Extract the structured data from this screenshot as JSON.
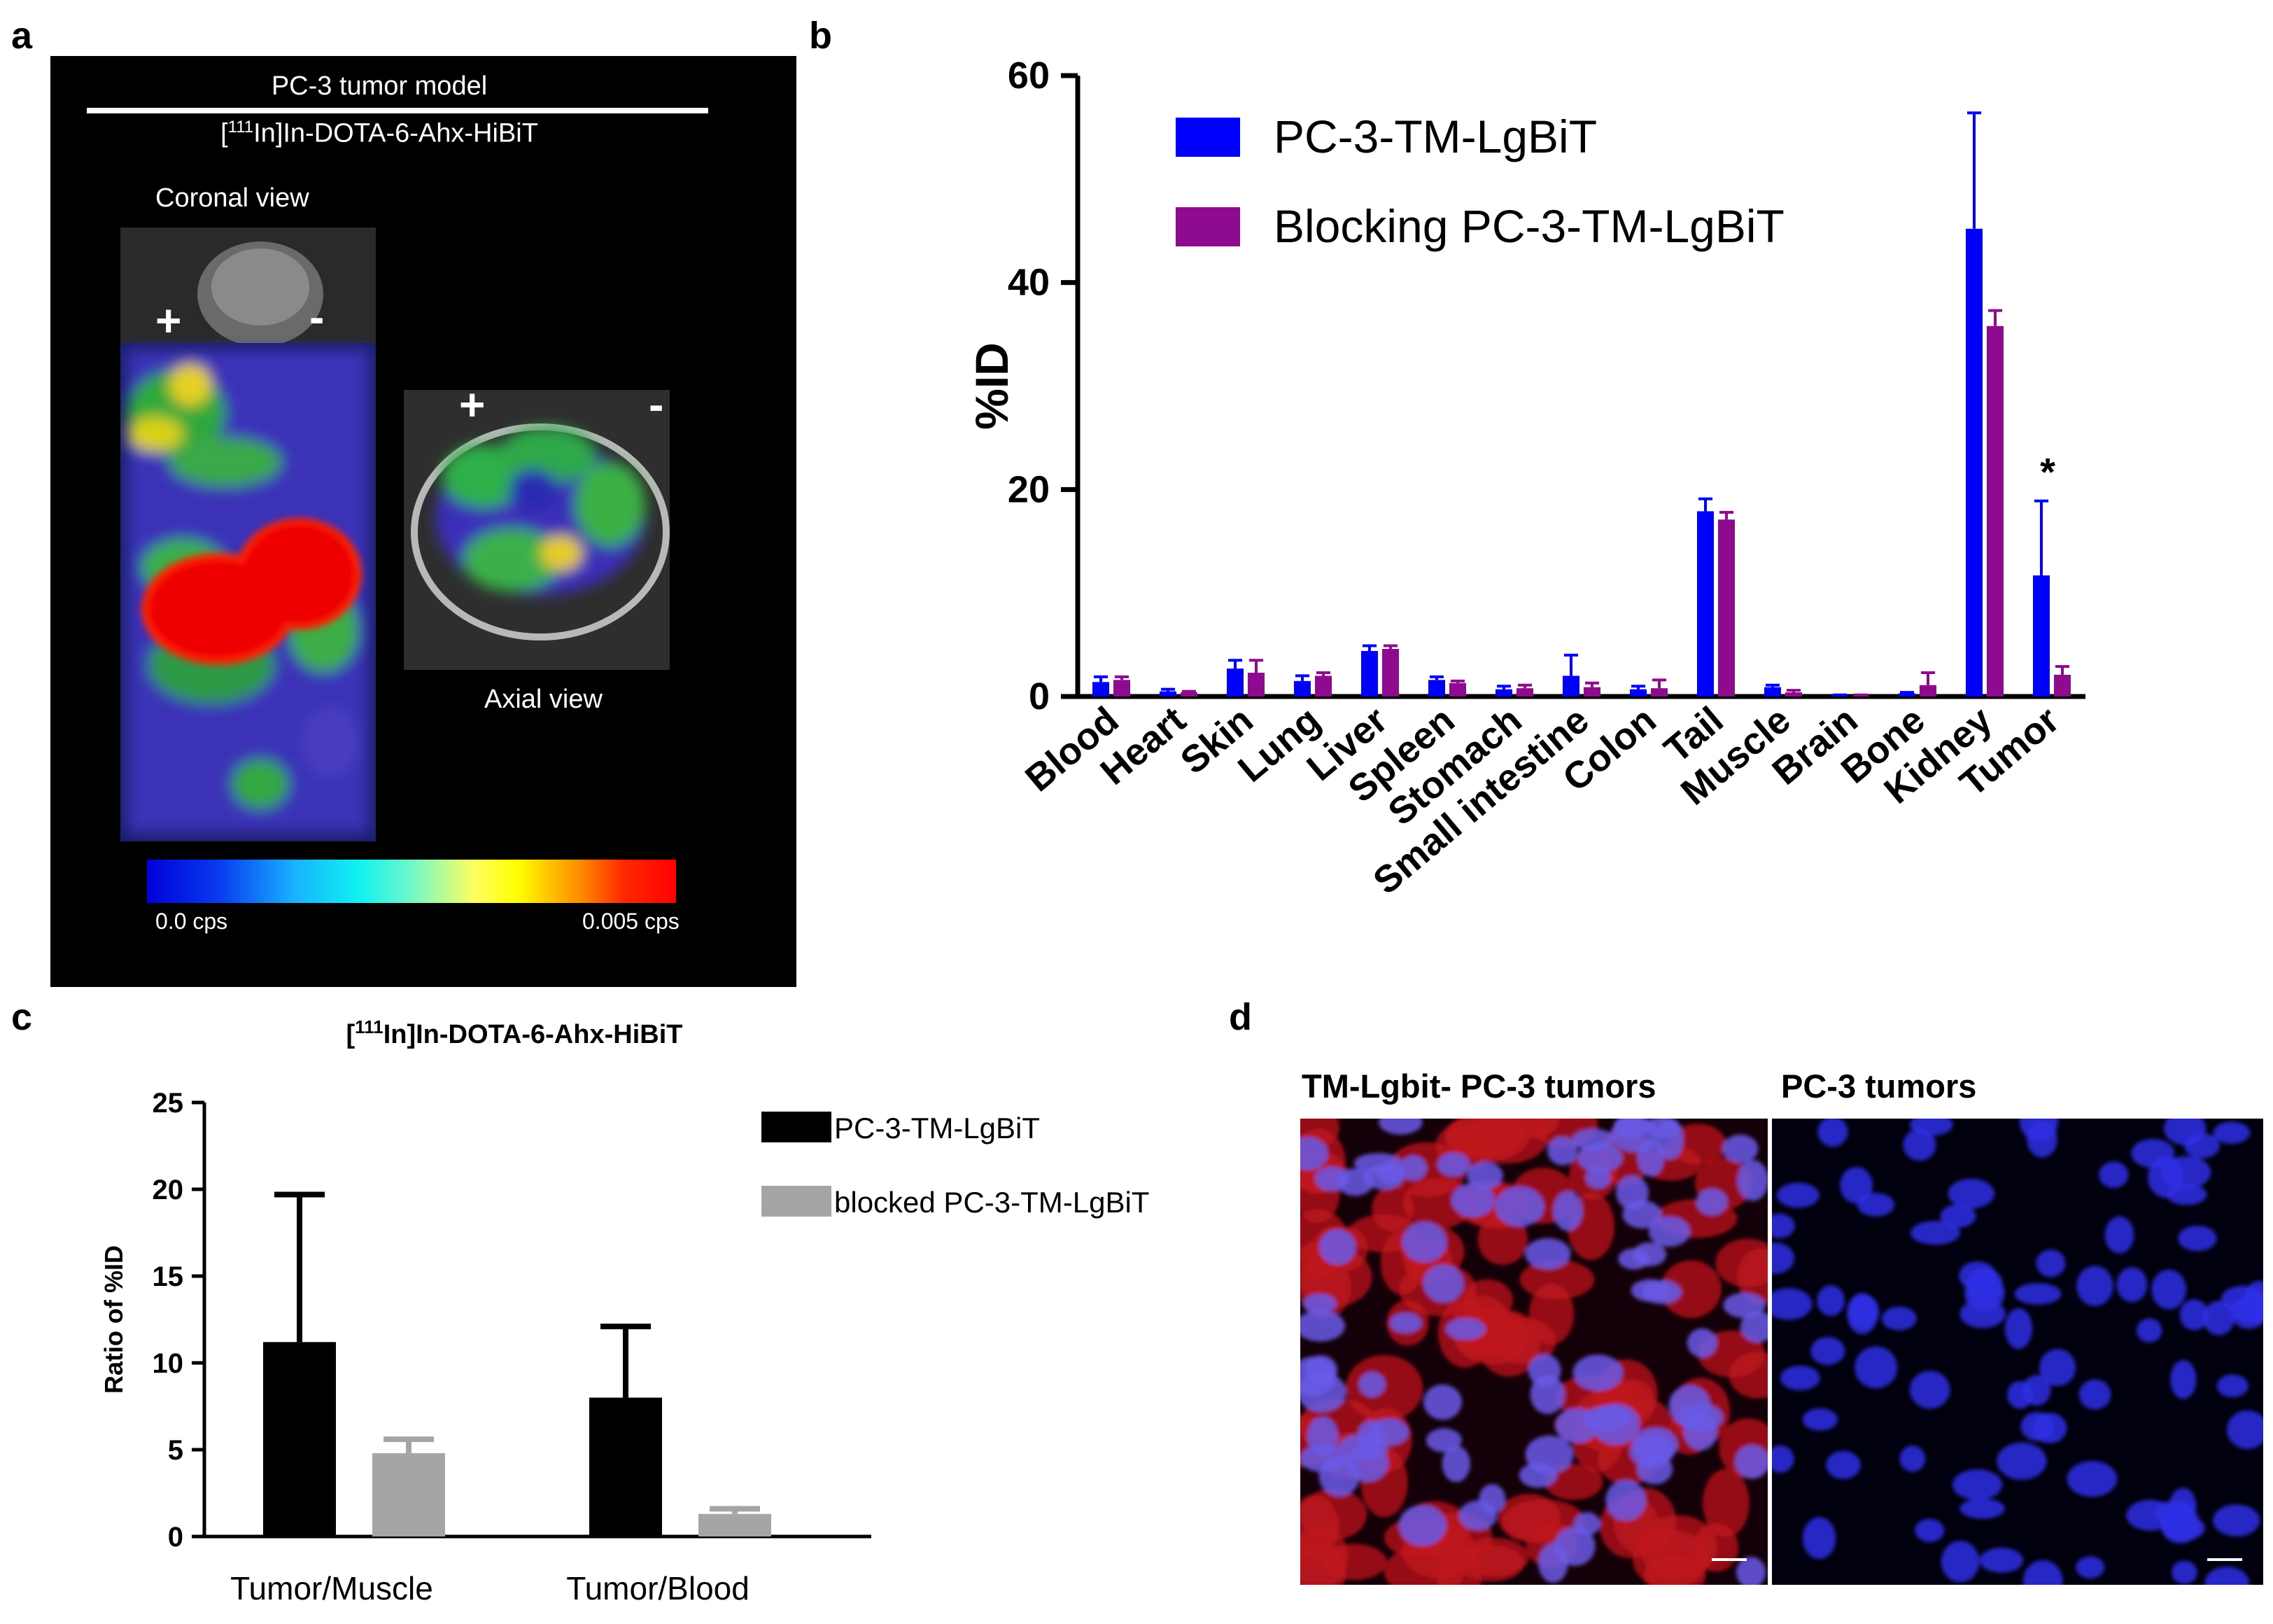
{
  "panel_labels": {
    "a": "a",
    "b": "b",
    "c": "c",
    "d": "d"
  },
  "panel_a": {
    "title": "PC-3 tumor model",
    "tracer_sup": "111",
    "tracer_rest": "In]In-DOTA-6-Ahx-HiBiT",
    "tracer_open": "[",
    "coronal_label": "Coronal view",
    "axial_label": "Axial view",
    "plus": "+",
    "minus": "-",
    "colorbar_min": "0.0 cps",
    "colorbar_max": "0.005 cps"
  },
  "panel_d": {
    "left_title": "TM-Lgbit- PC-3 tumors",
    "right_title": "PC-3 tumors"
  },
  "chart_data": [
    {
      "panel": "b",
      "type": "bar",
      "ylabel": "%ID",
      "ylim": [
        0,
        60
      ],
      "yticks": [
        0,
        20,
        40,
        60
      ],
      "categories": [
        "Blood",
        "Heart",
        "Skin",
        "Lung",
        "Liver",
        "Spleen",
        "Stomach",
        "Small intestine",
        "Colon",
        "Tail",
        "Muscle",
        "Brain",
        "Bone",
        "Kidney",
        "Tumor"
      ],
      "series": [
        {
          "name": "PC-3-TM-LgBiT",
          "color": "#0000ff",
          "values": [
            1.4,
            0.5,
            2.7,
            1.5,
            4.4,
            1.6,
            0.7,
            2.0,
            0.7,
            17.9,
            0.9,
            0.1,
            0.3,
            45.2,
            11.7
          ],
          "errors": [
            0.5,
            0.2,
            0.8,
            0.5,
            0.5,
            0.3,
            0.3,
            2.0,
            0.3,
            1.2,
            0.2,
            0.05,
            0.1,
            11.2,
            7.2
          ]
        },
        {
          "name": "Blocking PC-3-TM-LgBiT",
          "color": "#8e0a8e",
          "values": [
            1.6,
            0.4,
            2.3,
            2.0,
            4.6,
            1.3,
            0.8,
            0.9,
            0.8,
            17.1,
            0.4,
            0.1,
            1.1,
            35.8,
            2.1
          ],
          "errors": [
            0.3,
            0.1,
            1.2,
            0.3,
            0.3,
            0.2,
            0.3,
            0.4,
            0.8,
            0.7,
            0.2,
            0.05,
            1.2,
            1.5,
            0.8
          ]
        }
      ],
      "annotations": [
        {
          "category": "Tumor",
          "text": "*"
        }
      ],
      "legend_position": "top-left"
    },
    {
      "panel": "c",
      "type": "bar",
      "title_sup": "111",
      "title_rest": "In]In-DOTA-6-Ahx-HiBiT",
      "title_open": "[",
      "ylabel": "Ratio of %ID",
      "ylim": [
        0,
        25
      ],
      "yticks": [
        0,
        5,
        10,
        15,
        20,
        25
      ],
      "categories": [
        "Tumor/Muscle",
        "Tumor/Blood"
      ],
      "series": [
        {
          "name": "PC-3-TM-LgBiT",
          "color": "#000000",
          "values": [
            11.2,
            8.0
          ],
          "errors": [
            8.5,
            4.1
          ]
        },
        {
          "name": "blocked PC-3-TM-LgBiT",
          "color": "#a5a5a8",
          "values": [
            4.8,
            1.3
          ],
          "errors": [
            0.8,
            0.3
          ]
        }
      ],
      "legend_position": "top-right"
    }
  ]
}
